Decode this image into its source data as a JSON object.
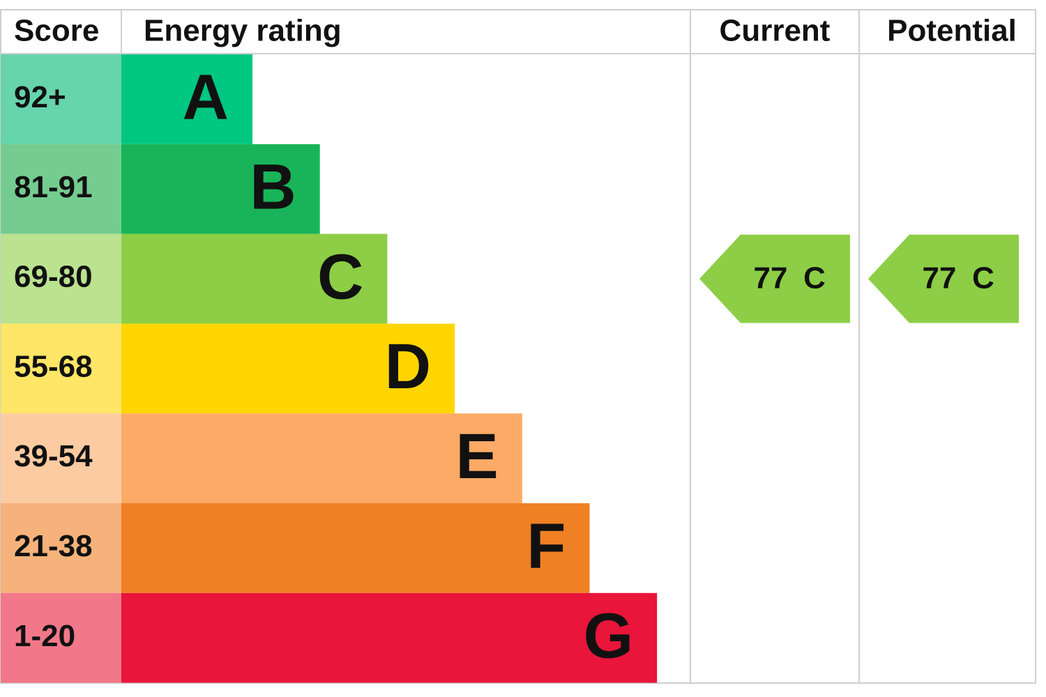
{
  "header": {
    "score": "Score",
    "rating": "Energy rating",
    "current": "Current",
    "potential": "Potential"
  },
  "bands": [
    {
      "score": "92+",
      "letter": "A"
    },
    {
      "score": "81-91",
      "letter": "B"
    },
    {
      "score": "69-80",
      "letter": "C"
    },
    {
      "score": "55-68",
      "letter": "D"
    },
    {
      "score": "39-54",
      "letter": "E"
    },
    {
      "score": "21-38",
      "letter": "F"
    },
    {
      "score": "1-20",
      "letter": "G"
    }
  ],
  "current": {
    "score": 77,
    "letter": "C"
  },
  "potential": {
    "score": 77,
    "letter": "C"
  }
}
